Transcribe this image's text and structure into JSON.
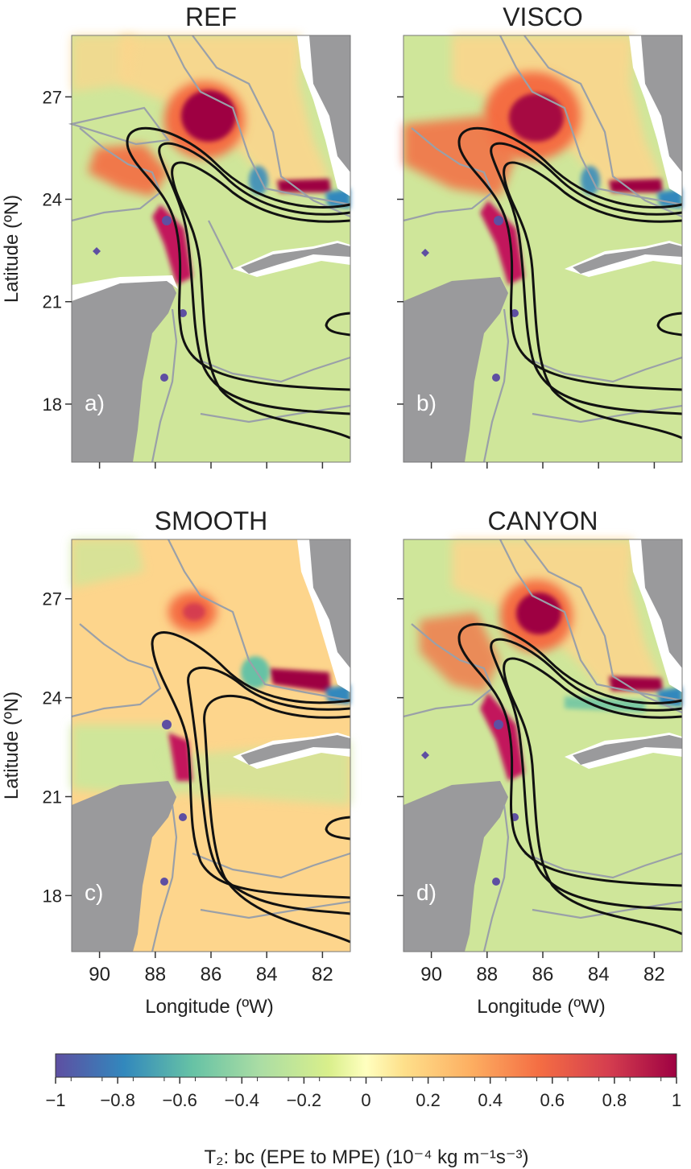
{
  "chart_data": [
    {
      "type": "heatmap",
      "title": "REF",
      "panel_label": "a)",
      "xlabel": "",
      "ylabel": "Latitude (ºN)",
      "xlim": [
        91,
        81
      ],
      "ylim": [
        16.3,
        28.8
      ],
      "x_ticks": [],
      "y_ticks": [
        "27",
        "24",
        "21",
        "18"
      ]
    },
    {
      "type": "heatmap",
      "title": "VISCO",
      "panel_label": "b)",
      "xlabel": "",
      "ylabel": "",
      "xlim": [
        91,
        81
      ],
      "ylim": [
        16.3,
        28.8
      ],
      "x_ticks": [],
      "y_ticks": []
    },
    {
      "type": "heatmap",
      "title": "SMOOTH",
      "panel_label": "c)",
      "xlabel": "Longitude (ºW)",
      "ylabel": "Latitude (ºN)",
      "xlim": [
        91,
        81
      ],
      "ylim": [
        16.3,
        28.8
      ],
      "x_ticks": [
        "90",
        "88",
        "86",
        "84",
        "82"
      ],
      "y_ticks": [
        "27",
        "24",
        "21",
        "18"
      ]
    },
    {
      "type": "heatmap",
      "title": "CANYON",
      "panel_label": "d)",
      "xlabel": "Longitude (ºW)",
      "ylabel": "",
      "xlim": [
        91,
        81
      ],
      "ylim": [
        16.3,
        28.8
      ],
      "x_ticks": [
        "90",
        "88",
        "86",
        "84",
        "82"
      ],
      "y_ticks": []
    }
  ],
  "colorbar": {
    "min": -1,
    "max": 1,
    "ticks": [
      "−1",
      "−0.8",
      "−0.6",
      "−0.4",
      "−0.2",
      "0",
      "0.2",
      "0.4",
      "0.6",
      "0.8",
      "1"
    ],
    "label": "T₂: bc (EPE to MPE) (10⁻⁴ kg m⁻¹s⁻³)",
    "colors": [
      "#5e4fa2",
      "#3288bd",
      "#66c2a5",
      "#abdda4",
      "#e6f598",
      "#fee08b",
      "#fdae61",
      "#f46d43",
      "#d53e4f",
      "#9e0142"
    ]
  },
  "colors": {
    "land": "#9a9a9c",
    "background_field": "#cfe69a",
    "isobath": "#9aa0a8",
    "streamline": "#111111"
  }
}
